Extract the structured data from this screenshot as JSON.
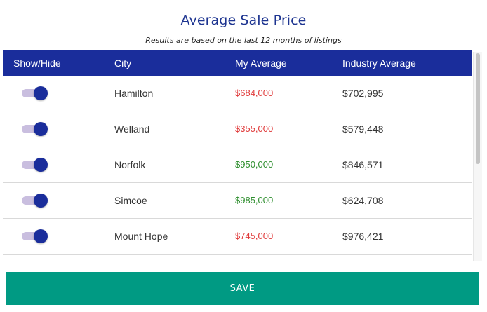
{
  "header": {
    "title": "Average Sale Price",
    "subtitle": "Results are based on the last 12 months of listings"
  },
  "table": {
    "columns": [
      "Show/Hide",
      "City",
      "My Average",
      "Industry Average"
    ],
    "rows": [
      {
        "visible": true,
        "city": "Hamilton",
        "my_average": "$684,000",
        "my_average_status": "below",
        "industry_average": "$702,995"
      },
      {
        "visible": true,
        "city": "Welland",
        "my_average": "$355,000",
        "my_average_status": "below",
        "industry_average": "$579,448"
      },
      {
        "visible": true,
        "city": "Norfolk",
        "my_average": "$950,000",
        "my_average_status": "above",
        "industry_average": "$846,571"
      },
      {
        "visible": true,
        "city": "Simcoe",
        "my_average": "$985,000",
        "my_average_status": "above",
        "industry_average": "$624,708"
      },
      {
        "visible": true,
        "city": "Mount Hope",
        "my_average": "$745,000",
        "my_average_status": "below",
        "industry_average": "$976,421"
      }
    ]
  },
  "colors": {
    "title": "#1d3490",
    "header_bg": "#1a2d9b",
    "below_average": "#e03a3a",
    "above_average": "#2f8f2f",
    "toggle_track": "#c9bedf",
    "toggle_knob": "#1a2d9b",
    "save_bg": "#009a83"
  },
  "actions": {
    "save_label": "SAVE"
  }
}
